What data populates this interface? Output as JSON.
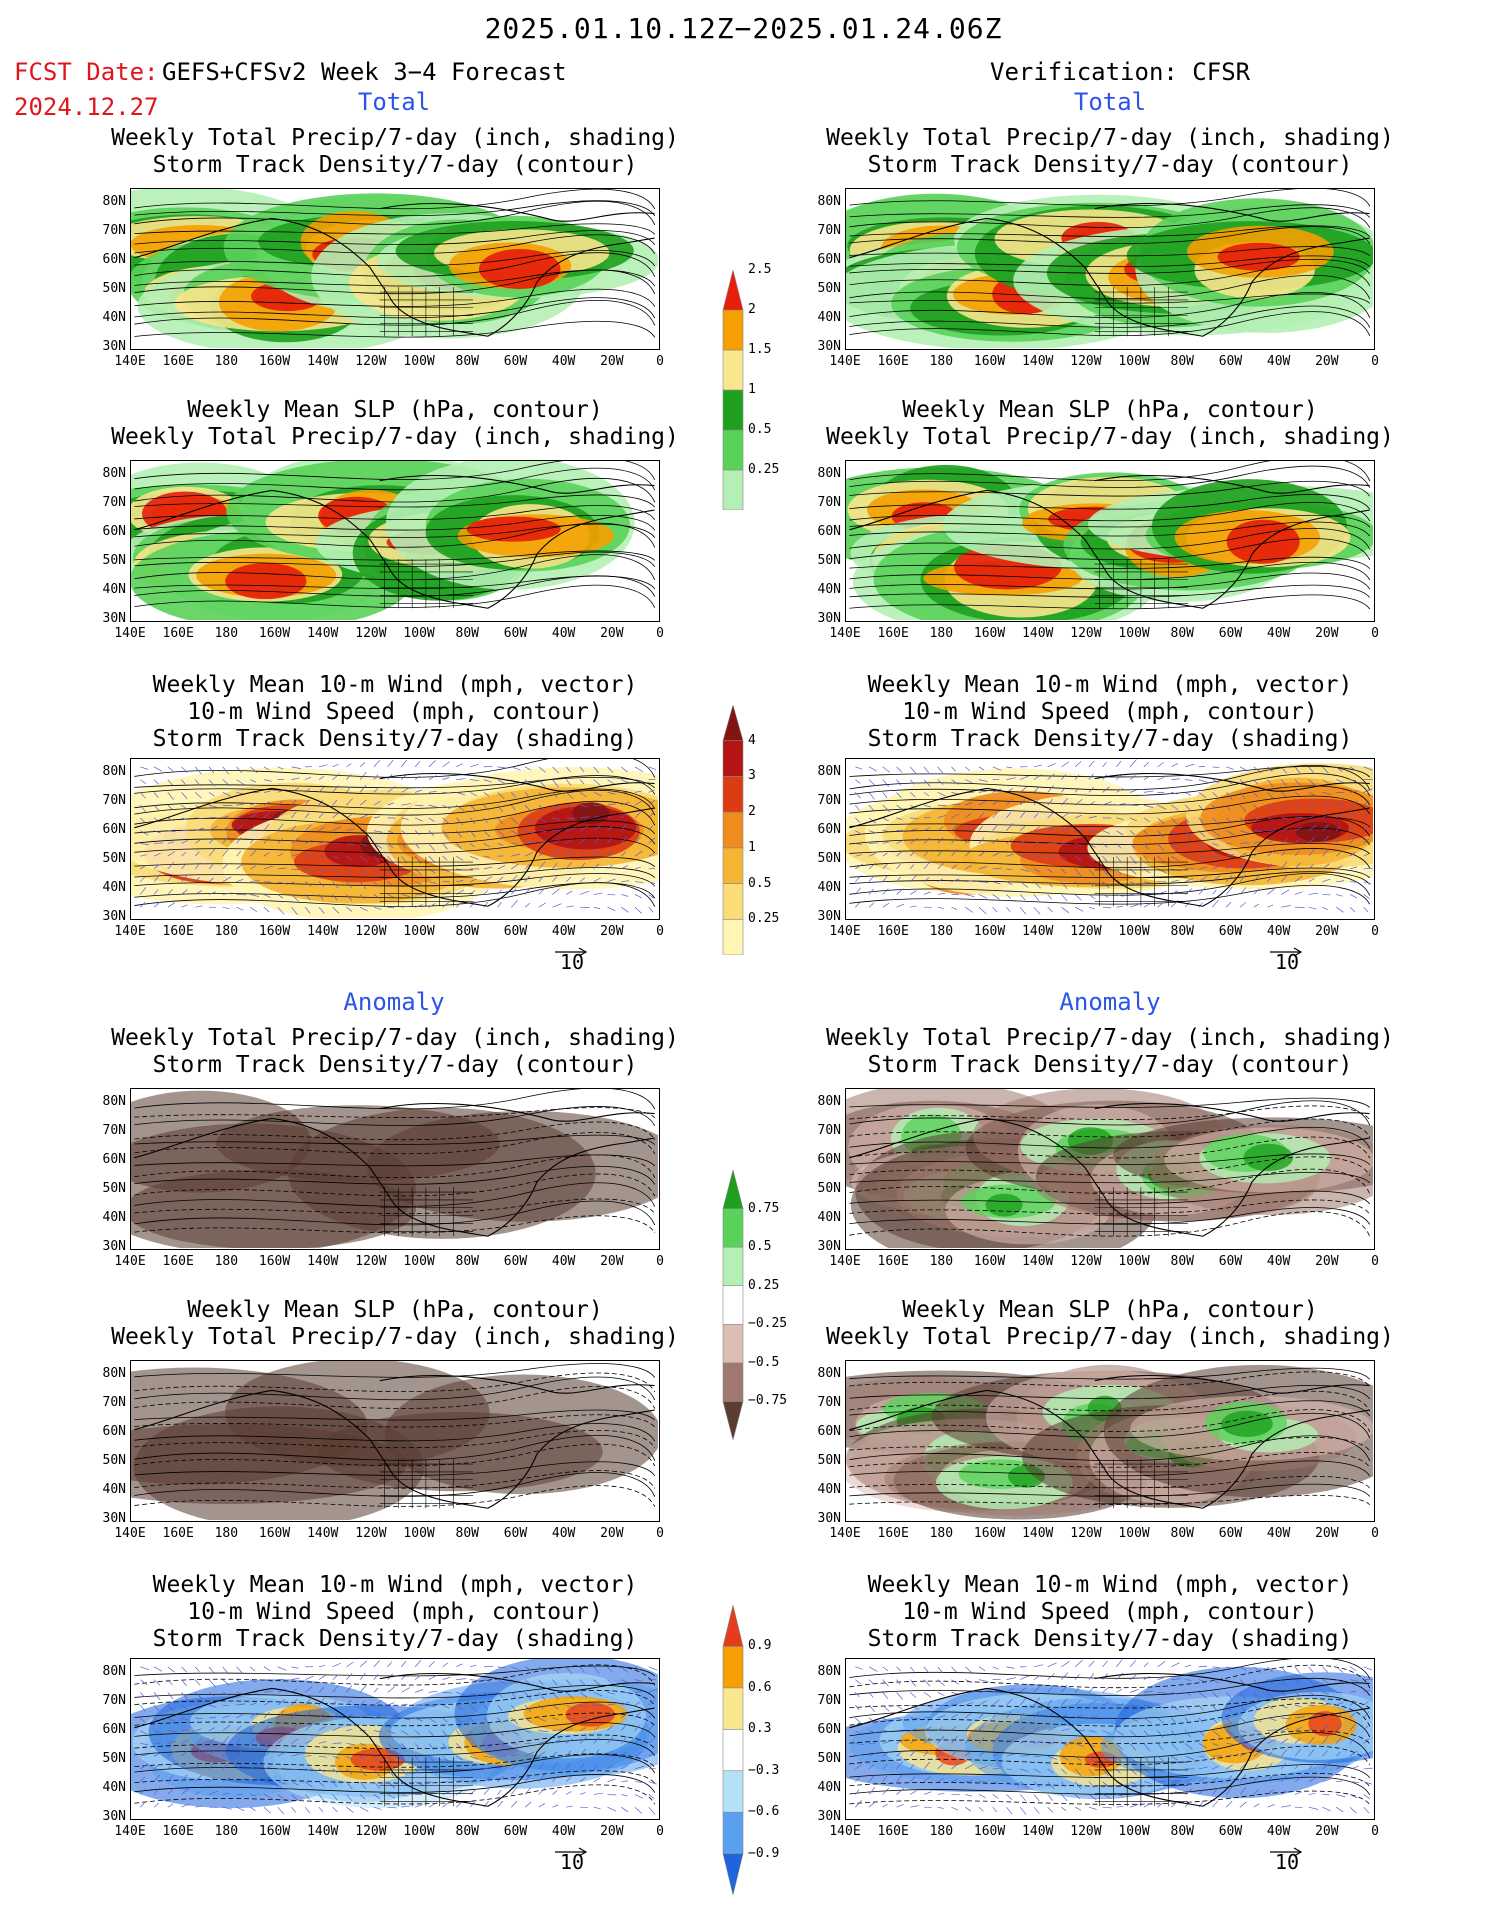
{
  "header": {
    "title": "2025.01.10.12Z−2025.01.24.06Z",
    "fcst_label": "FCST Date:",
    "fcst_name": "GEFS+CFSv2 Week 3−4 Forecast",
    "fcst_date": "2024.12.27",
    "verification": "Verification: CFSR"
  },
  "sections": {
    "total": "Total",
    "anomaly": "Anomaly"
  },
  "titles": {
    "precip_storm": [
      "Weekly Total Precip/7-day (inch, shading)",
      "Storm Track Density/7-day (contour)"
    ],
    "slp_precip": [
      "Weekly Mean SLP (hPa, contour)",
      "Weekly Total Precip/7-day (inch, shading)"
    ],
    "wind_storm": [
      "Weekly Mean 10-m Wind (mph, vector)",
      "10-m Wind Speed (mph, contour)",
      "Storm Track Density/7-day (shading)"
    ]
  },
  "axes": {
    "lat_labels": [
      "80N",
      "70N",
      "60N",
      "50N",
      "40N",
      "30N"
    ],
    "lon_labels": [
      "140E",
      "160E",
      "180",
      "160W",
      "140W",
      "120W",
      "100W",
      "80W",
      "60W",
      "40W",
      "20W",
      "0"
    ]
  },
  "vector_ref": "10",
  "colorbars": {
    "precip_total": [
      "0.25",
      "0.5",
      "1",
      "1.5",
      "2",
      "2.5"
    ],
    "storm_total": [
      "0.25",
      "0.5",
      "1",
      "2",
      "3",
      "4"
    ],
    "precip_anom": [
      "−0.75",
      "−0.5",
      "−0.25",
      "0.25",
      "0.5",
      "0.75"
    ],
    "storm_anom": [
      "−0.9",
      "−0.6",
      "−0.3",
      "0.3",
      "0.6",
      "0.9"
    ]
  },
  "colors": {
    "precip_total": [
      "#b4f0b4",
      "#5ad25a",
      "#1ea01e",
      "#fae68c",
      "#f5a000",
      "#e61e0a"
    ],
    "storm_total": [
      "#fff5b4",
      "#fadc78",
      "#f5b432",
      "#f08c1e",
      "#dc3c14",
      "#b41414",
      "#821414"
    ],
    "precip_anom": [
      "#5a3c32",
      "#a0786e",
      "#dcbeb4",
      "#ffffff",
      "#b4f0b4",
      "#5ad25a",
      "#1ea01e"
    ],
    "storm_anom": [
      "#1e64dc",
      "#5aa0f0",
      "#b4e1f5",
      "#ffffff",
      "#fae68c",
      "#f5a000",
      "#e63c1e"
    ]
  }
}
